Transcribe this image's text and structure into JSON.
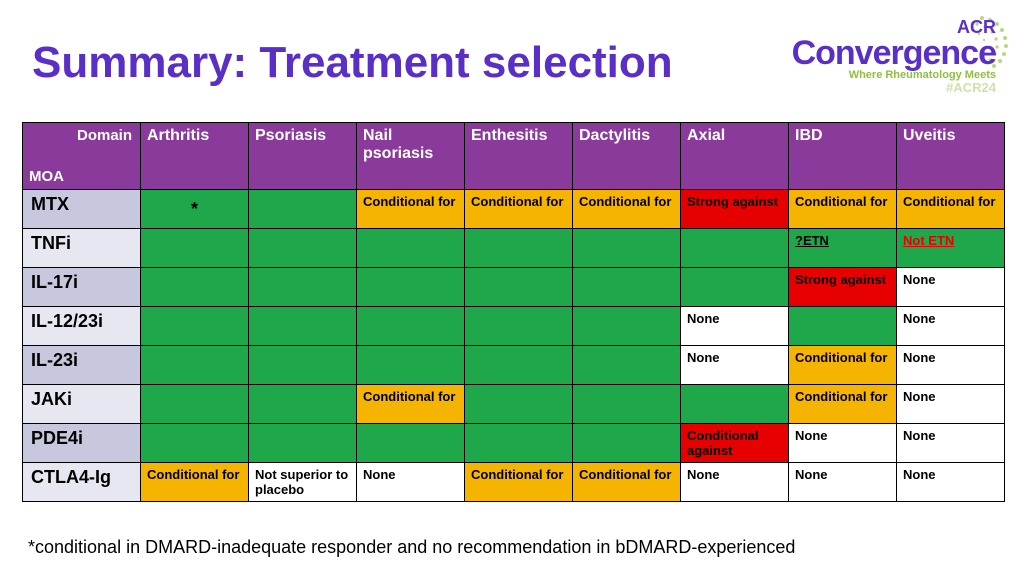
{
  "title": "Summary: Treatment selection",
  "logo": {
    "acr": "ACR",
    "conv": "Convergence",
    "tag": "Where Rheumatology Meets",
    "hash": "#ACR24"
  },
  "corner": {
    "domain": "Domain",
    "moa": "MOA"
  },
  "columns": [
    "Arthritis",
    "Psoriasis",
    "Nail psoriasis",
    "Enthesitis",
    "Dactylitis",
    "Axial",
    "IBD",
    "Uveitis"
  ],
  "rows": [
    {
      "label": "MTX",
      "cells": [
        {
          "cls": "star",
          "text": "*"
        },
        {
          "cls": "green",
          "text": ""
        },
        {
          "cls": "orange",
          "text": "Conditional for"
        },
        {
          "cls": "orange",
          "text": "Conditional for"
        },
        {
          "cls": "orange",
          "text": "Conditional for"
        },
        {
          "cls": "red",
          "text": "Strong against"
        },
        {
          "cls": "orange",
          "text": "Conditional for"
        },
        {
          "cls": "orange",
          "text": "Conditional for"
        }
      ]
    },
    {
      "label": "TNFi",
      "cells": [
        {
          "cls": "green",
          "text": ""
        },
        {
          "cls": "green",
          "text": ""
        },
        {
          "cls": "green",
          "text": ""
        },
        {
          "cls": "green",
          "text": ""
        },
        {
          "cls": "green",
          "text": ""
        },
        {
          "cls": "green",
          "text": ""
        },
        {
          "cls": "green",
          "text": "?ETN",
          "extra": "etn"
        },
        {
          "cls": "green",
          "text": "Not ETN",
          "extra": "bold-red"
        }
      ]
    },
    {
      "label": "IL-17i",
      "cells": [
        {
          "cls": "green",
          "text": ""
        },
        {
          "cls": "green",
          "text": ""
        },
        {
          "cls": "green",
          "text": ""
        },
        {
          "cls": "green",
          "text": ""
        },
        {
          "cls": "green",
          "text": ""
        },
        {
          "cls": "green",
          "text": ""
        },
        {
          "cls": "red",
          "text": "Strong against"
        },
        {
          "cls": "white",
          "text": "None"
        }
      ]
    },
    {
      "label": "IL-12/23i",
      "cells": [
        {
          "cls": "green",
          "text": ""
        },
        {
          "cls": "green",
          "text": ""
        },
        {
          "cls": "green",
          "text": ""
        },
        {
          "cls": "green",
          "text": ""
        },
        {
          "cls": "green",
          "text": ""
        },
        {
          "cls": "white",
          "text": "None"
        },
        {
          "cls": "green",
          "text": ""
        },
        {
          "cls": "white",
          "text": "None"
        }
      ]
    },
    {
      "label": "IL-23i",
      "cells": [
        {
          "cls": "green",
          "text": ""
        },
        {
          "cls": "green",
          "text": ""
        },
        {
          "cls": "green",
          "text": ""
        },
        {
          "cls": "green",
          "text": ""
        },
        {
          "cls": "green",
          "text": ""
        },
        {
          "cls": "white",
          "text": "None"
        },
        {
          "cls": "orange",
          "text": "Conditional for"
        },
        {
          "cls": "white",
          "text": "None"
        }
      ]
    },
    {
      "label": "JAKi",
      "cells": [
        {
          "cls": "green",
          "text": ""
        },
        {
          "cls": "green",
          "text": ""
        },
        {
          "cls": "orange",
          "text": "Conditional for"
        },
        {
          "cls": "green",
          "text": ""
        },
        {
          "cls": "green",
          "text": ""
        },
        {
          "cls": "green",
          "text": ""
        },
        {
          "cls": "orange",
          "text": "Conditional for"
        },
        {
          "cls": "white",
          "text": "None"
        }
      ]
    },
    {
      "label": "PDE4i",
      "cells": [
        {
          "cls": "green",
          "text": ""
        },
        {
          "cls": "green",
          "text": ""
        },
        {
          "cls": "green",
          "text": ""
        },
        {
          "cls": "green",
          "text": ""
        },
        {
          "cls": "green",
          "text": ""
        },
        {
          "cls": "red",
          "text": "Conditional against"
        },
        {
          "cls": "white",
          "text": "None"
        },
        {
          "cls": "white",
          "text": "None"
        }
      ]
    },
    {
      "label": "CTLA4-Ig",
      "cells": [
        {
          "cls": "orange",
          "text": "Conditional for"
        },
        {
          "cls": "white",
          "text": "Not superior to placebo"
        },
        {
          "cls": "white",
          "text": "None"
        },
        {
          "cls": "orange",
          "text": "Conditional for"
        },
        {
          "cls": "orange",
          "text": "Conditional for"
        },
        {
          "cls": "white",
          "text": "None"
        },
        {
          "cls": "white",
          "text": "None"
        },
        {
          "cls": "white",
          "text": "None"
        }
      ]
    }
  ],
  "footnote": "*conditional in DMARD-inadequate responder and no recommendation in bDMARD-experienced"
}
